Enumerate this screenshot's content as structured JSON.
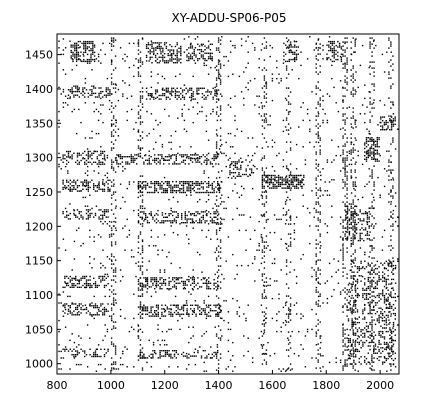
{
  "chart_data": {
    "type": "scatter",
    "title": "XY-ADDU-SP06-P05",
    "xlabel": "",
    "ylabel": "",
    "xlim": [
      800,
      2070
    ],
    "ylim": [
      985,
      1480
    ],
    "xticks": [
      800,
      1000,
      1200,
      1400,
      1600,
      1800,
      2000
    ],
    "yticks": [
      1000,
      1050,
      1100,
      1150,
      1200,
      1250,
      1300,
      1350,
      1400,
      1450
    ],
    "grid": false,
    "legend": "none",
    "marker_color": "#000000",
    "clusters": [
      {
        "x": [
          850,
          940
        ],
        "y": [
          1440,
          1470
        ],
        "density": 0.55
      },
      {
        "x": [
          1130,
          1260
        ],
        "y": [
          1438,
          1468
        ],
        "density": 0.5
      },
      {
        "x": [
          1280,
          1380
        ],
        "y": [
          1440,
          1466
        ],
        "density": 0.45
      },
      {
        "x": [
          840,
          1000
        ],
        "y": [
          1388,
          1405
        ],
        "density": 0.4
      },
      {
        "x": [
          1130,
          1400
        ],
        "y": [
          1386,
          1402
        ],
        "density": 0.4
      },
      {
        "x": [
          820,
          980
        ],
        "y": [
          1290,
          1310
        ],
        "density": 0.45
      },
      {
        "x": [
          1020,
          1110
        ],
        "y": [
          1290,
          1305
        ],
        "density": 0.5
      },
      {
        "x": [
          1120,
          1400
        ],
        "y": [
          1290,
          1305
        ],
        "density": 0.45
      },
      {
        "x": [
          1440,
          1530
        ],
        "y": [
          1270,
          1300
        ],
        "density": 0.35
      },
      {
        "x": [
          1560,
          1720
        ],
        "y": [
          1255,
          1275
        ],
        "density": 0.7
      },
      {
        "x": [
          820,
          1000
        ],
        "y": [
          1250,
          1268
        ],
        "density": 0.5
      },
      {
        "x": [
          1100,
          1410
        ],
        "y": [
          1248,
          1266
        ],
        "density": 0.5
      },
      {
        "x": [
          820,
          990
        ],
        "y": [
          1210,
          1225
        ],
        "density": 0.4
      },
      {
        "x": [
          1100,
          1400
        ],
        "y": [
          1205,
          1222
        ],
        "density": 0.4
      },
      {
        "x": [
          1870,
          1960
        ],
        "y": [
          1180,
          1230
        ],
        "density": 0.4
      },
      {
        "x": [
          2000,
          2060
        ],
        "y": [
          1340,
          1360
        ],
        "density": 0.6
      },
      {
        "x": [
          1940,
          2000
        ],
        "y": [
          1295,
          1330
        ],
        "density": 0.5
      },
      {
        "x": [
          820,
          990
        ],
        "y": [
          1110,
          1128
        ],
        "density": 0.45
      },
      {
        "x": [
          1100,
          1400
        ],
        "y": [
          1108,
          1126
        ],
        "density": 0.45
      },
      {
        "x": [
          820,
          990
        ],
        "y": [
          1072,
          1088
        ],
        "density": 0.45
      },
      {
        "x": [
          1100,
          1410
        ],
        "y": [
          1068,
          1086
        ],
        "density": 0.45
      },
      {
        "x": [
          820,
          990
        ],
        "y": [
          1010,
          1022
        ],
        "density": 0.35
      },
      {
        "x": [
          1100,
          1400
        ],
        "y": [
          1008,
          1020
        ],
        "density": 0.35
      },
      {
        "x": [
          1880,
          2060
        ],
        "y": [
          1000,
          1150
        ],
        "density": 0.3
      },
      {
        "x": [
          1800,
          1860
        ],
        "y": [
          1440,
          1470
        ],
        "density": 0.4
      },
      {
        "x": [
          1640,
          1700
        ],
        "y": [
          1440,
          1470
        ],
        "density": 0.35
      }
    ],
    "columns": [
      {
        "x": [
          1000,
          1015
        ],
        "y": [
          990,
          1475
        ],
        "density": 0.25
      },
      {
        "x": [
          1100,
          1115
        ],
        "y": [
          990,
          1475
        ],
        "density": 0.25
      },
      {
        "x": [
          1390,
          1410
        ],
        "y": [
          990,
          1475
        ],
        "density": 0.25
      },
      {
        "x": [
          1560,
          1575
        ],
        "y": [
          990,
          1475
        ],
        "density": 0.25
      },
      {
        "x": [
          1650,
          1665
        ],
        "y": [
          990,
          1475
        ],
        "density": 0.2
      },
      {
        "x": [
          1760,
          1780
        ],
        "y": [
          990,
          1475
        ],
        "density": 0.25
      },
      {
        "x": [
          1860,
          1875
        ],
        "y": [
          990,
          1475
        ],
        "density": 0.3
      },
      {
        "x": [
          1890,
          1910
        ],
        "y": [
          990,
          1475
        ],
        "density": 0.3
      },
      {
        "x": [
          1960,
          1975
        ],
        "y": [
          990,
          1475
        ],
        "density": 0.25
      },
      {
        "x": [
          2030,
          2050
        ],
        "y": [
          990,
          1475
        ],
        "density": 0.25
      }
    ],
    "background_density": 0.05
  }
}
